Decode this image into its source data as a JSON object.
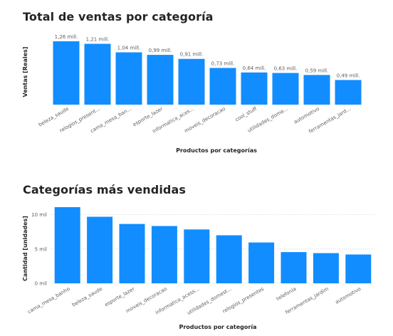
{
  "colors": {
    "bar": "#118DFF",
    "title": "#252423",
    "label": "#605e5c",
    "grid": "#c8c6c4"
  },
  "chart_data": [
    {
      "type": "bar",
      "title": "Total de ventas por categoría",
      "xlabel": "Productos por categorías",
      "ylabel": "Ventas [Reales]",
      "categories": [
        "beleza_saude",
        "relogios_present...",
        "cama_mesa_ban...",
        "esporte_lazer",
        "informatica_aces...",
        "moveis_decoracao",
        "cool_stuff",
        "utilidades_dome...",
        "automotivo",
        "ferramentas_jard..."
      ],
      "values": [
        1.26,
        1.21,
        1.04,
        0.99,
        0.91,
        0.73,
        0.64,
        0.63,
        0.59,
        0.49
      ],
      "data_labels": [
        "1,26 mill.",
        "1,21 mill.",
        "1,04 mill.",
        "0,99 mill.",
        "0,91 mill.",
        "0,73 mill.",
        "0,64 mill.",
        "0,63 mill.",
        "0,59 mill.",
        "0,49 mill."
      ],
      "unit": "millions",
      "ylim": [
        0,
        1.26
      ],
      "grid": false,
      "legend": "none"
    },
    {
      "type": "bar",
      "title": "Categorías más vendidas",
      "xlabel": "Productos por categoría",
      "ylabel": "Cantidad [unidades]",
      "categories": [
        "cama_mesa_banho",
        "beleza_saude",
        "esporte_lazer",
        "moveis_decoracao",
        "informatica_acess...",
        "utilidades_domest...",
        "relogios_presentes",
        "telefonia",
        "ferramentas_jardim",
        "automotivo"
      ],
      "values": [
        11100,
        9700,
        8650,
        8350,
        7850,
        7000,
        5950,
        4550,
        4400,
        4200
      ],
      "yticks": [
        0,
        5000,
        10000
      ],
      "ytick_labels": [
        "0 mil",
        "5 mil",
        "10 mil"
      ],
      "ylim": [
        0,
        11100
      ],
      "grid": true,
      "legend": "none"
    }
  ]
}
